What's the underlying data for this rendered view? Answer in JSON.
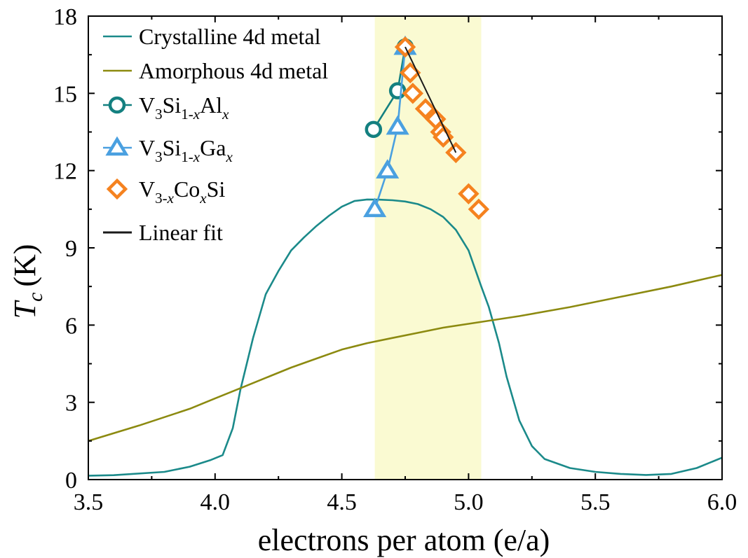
{
  "chart_data": {
    "type": "line",
    "xlabel": "electrons per atom (e/a)",
    "ylabel": {
      "main": "T",
      "sub": "c",
      "unit": "(K)"
    },
    "xlim": [
      3.5,
      6.0
    ],
    "ylim": [
      0,
      18
    ],
    "xticks": [
      "3.5",
      "4.0",
      "4.5",
      "5.0",
      "5.5",
      "6.0"
    ],
    "yticks": [
      "0",
      "3",
      "6",
      "9",
      "12",
      "15",
      "18"
    ],
    "grid": false,
    "legend_position": "top-left",
    "shaded_region": {
      "x": [
        4.63,
        5.05
      ],
      "color": "#fafad2"
    },
    "series": [
      {
        "name": "Crystalline 4d metal",
        "legend": [
          {
            "t": "Crystalline 4d metal"
          }
        ],
        "style": "line",
        "color": "#1b8a8a",
        "x": [
          3.5,
          3.6,
          3.8,
          3.9,
          3.98,
          4.03,
          4.07,
          4.1,
          4.15,
          4.2,
          4.25,
          4.3,
          4.35,
          4.4,
          4.45,
          4.5,
          4.55,
          4.6,
          4.65,
          4.7,
          4.75,
          4.8,
          4.85,
          4.9,
          4.95,
          5.0,
          5.05,
          5.08,
          5.12,
          5.15,
          5.2,
          5.25,
          5.3,
          5.4,
          5.5,
          5.6,
          5.7,
          5.8,
          5.9,
          6.0
        ],
        "y": [
          0.15,
          0.17,
          0.3,
          0.5,
          0.75,
          0.95,
          2.0,
          3.5,
          5.5,
          7.2,
          8.1,
          8.9,
          9.4,
          9.85,
          10.25,
          10.6,
          10.82,
          10.88,
          10.87,
          10.85,
          10.8,
          10.7,
          10.5,
          10.2,
          9.7,
          8.9,
          7.5,
          6.7,
          5.3,
          4.0,
          2.3,
          1.3,
          0.8,
          0.45,
          0.3,
          0.22,
          0.18,
          0.22,
          0.45,
          0.85
        ]
      },
      {
        "name": "Amorphous 4d metal",
        "legend": [
          {
            "t": "Amorphous 4d metal"
          }
        ],
        "style": "line",
        "color": "#8c8a10",
        "x": [
          3.5,
          3.7,
          3.9,
          4.0,
          4.1,
          4.2,
          4.3,
          4.4,
          4.5,
          4.6,
          4.7,
          4.8,
          4.9,
          5.0,
          5.2,
          5.4,
          5.6,
          5.8,
          6.0
        ],
        "y": [
          1.5,
          2.1,
          2.75,
          3.15,
          3.55,
          3.95,
          4.35,
          4.7,
          5.05,
          5.3,
          5.5,
          5.7,
          5.9,
          6.05,
          6.35,
          6.7,
          7.1,
          7.5,
          7.95
        ]
      },
      {
        "name": "V3Si1-xAlx",
        "legend": [
          {
            "t": "V"
          },
          {
            "t": "3",
            "sub": true
          },
          {
            "t": "Si"
          },
          {
            "t": "1-",
            "sub": true
          },
          {
            "t": "x",
            "sub": true,
            "italic": true
          },
          {
            "t": "Al"
          },
          {
            "t": "x",
            "sub": true,
            "italic": true
          }
        ],
        "style": "line+marker",
        "marker": "circle",
        "color": "#148080",
        "x": [
          4.625,
          4.72,
          4.75
        ],
        "y": [
          13.6,
          15.1,
          16.8
        ]
      },
      {
        "name": "V3Si1-xGax",
        "legend": [
          {
            "t": "V"
          },
          {
            "t": "3",
            "sub": true
          },
          {
            "t": "Si"
          },
          {
            "t": "1-",
            "sub": true
          },
          {
            "t": "x",
            "sub": true,
            "italic": true
          },
          {
            "t": "Ga"
          },
          {
            "t": "x",
            "sub": true,
            "italic": true
          }
        ],
        "style": "line+marker",
        "marker": "triangle",
        "color": "#4aa0e0",
        "x": [
          4.63,
          4.68,
          4.72,
          4.75
        ],
        "y": [
          10.5,
          12.0,
          13.7,
          16.8
        ]
      },
      {
        "name": "V3-xCoxSi",
        "legend": [
          {
            "t": "V"
          },
          {
            "t": "3-",
            "sub": true
          },
          {
            "t": "x",
            "sub": true,
            "italic": true
          },
          {
            "t": "Co"
          },
          {
            "t": "x",
            "sub": true,
            "italic": true
          },
          {
            "t": "Si"
          }
        ],
        "style": "marker",
        "marker": "diamond",
        "color": "#f5821f",
        "x": [
          4.75,
          4.77,
          4.78,
          4.83,
          4.87,
          4.89,
          4.9,
          4.95,
          5.0,
          5.04
        ],
        "y": [
          16.8,
          15.8,
          15.0,
          14.4,
          14.0,
          13.5,
          13.3,
          12.7,
          11.1,
          10.5
        ]
      },
      {
        "name": "Linear fit",
        "legend": [
          {
            "t": "Linear fit"
          }
        ],
        "style": "line",
        "color": "#1a1a1a",
        "x": [
          4.75,
          4.95
        ],
        "y": [
          16.8,
          12.7
        ]
      }
    ]
  }
}
